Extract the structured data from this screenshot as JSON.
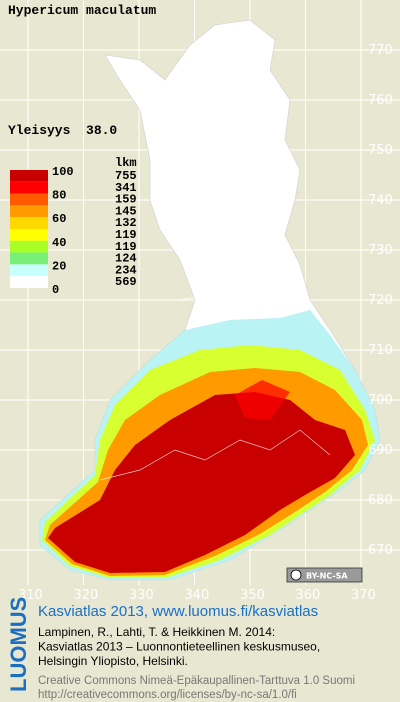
{
  "title": "Hypericum maculatum",
  "frequency": "Yleisyys  38.0",
  "legend": {
    "scale_labels": [
      100,
      80,
      60,
      40,
      20,
      0
    ],
    "count_header": "lkm",
    "counts": [
      755,
      341,
      159,
      145,
      132,
      119,
      119,
      124,
      234,
      569
    ],
    "colors": [
      "#c80000",
      "#ff0000",
      "#ff5a00",
      "#ff9a00",
      "#ffd800",
      "#ffff00",
      "#a8ff28",
      "#78f078",
      "#c8ffff",
      "#ffffff"
    ]
  },
  "northing_labels": [
    770,
    760,
    750,
    740,
    730,
    720,
    710,
    700,
    690,
    680,
    670
  ],
  "easting_labels": [
    310,
    320,
    330,
    340,
    350,
    360,
    370
  ],
  "license_badge": "BY-NC-SA",
  "footer": {
    "logo": "LUOMUS",
    "link": "Kasviatlas 2013, www.luomus.fi/kasviatlas",
    "citation": [
      "Lampinen, R., Lahti, T. & Heikkinen M. 2014:",
      "Kasviatlas 2013 – Luonnontieteellinen keskusmuseo,",
      "Helsingin Yliopisto, Helsinki."
    ],
    "license": [
      "Creative Commons Nimeä-Epäkaupallinen-Tarttuva 1.0 Suomi",
      "http://creativecommons.org/licenses/by-nc-sa/1.0/fi"
    ]
  }
}
